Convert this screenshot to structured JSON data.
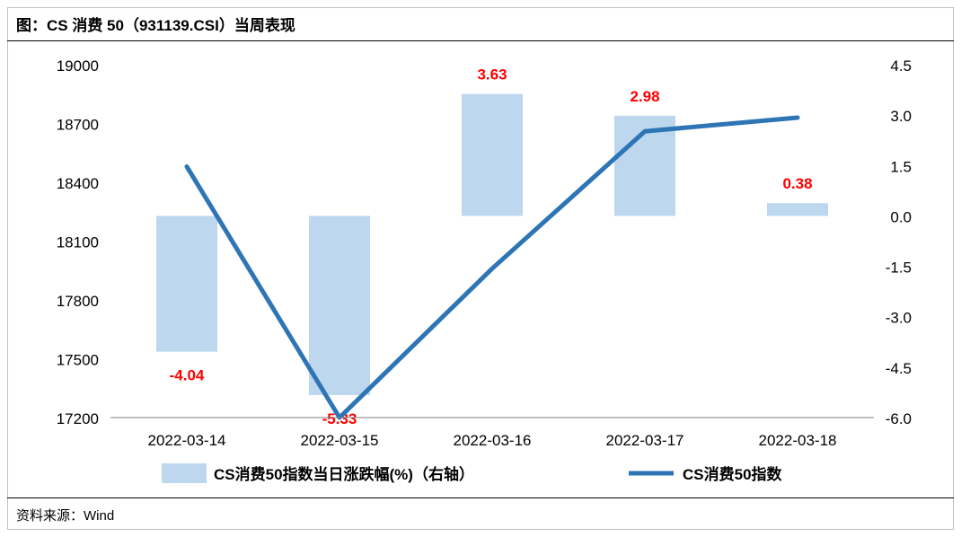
{
  "header": {
    "title": "图：CS 消费 50（931139.CSI）当周表现"
  },
  "footer": {
    "source": "资料来源：Wind"
  },
  "colors": {
    "bar": "#bdd7ee",
    "line": "#2e75b6",
    "label": "#ff0000",
    "axis": "#000000"
  },
  "chart_data": {
    "type": "bar",
    "categories": [
      "2022-03-14",
      "2022-03-15",
      "2022-03-16",
      "2022-03-17",
      "2022-03-18"
    ],
    "series": [
      {
        "name": "CS消费50指数当日涨跌幅(%)（右轴）",
        "type": "bar",
        "axis": "right",
        "values": [
          -4.04,
          -5.33,
          3.63,
          2.98,
          0.38
        ],
        "data_labels": [
          "-4.04",
          "-5.33",
          "3.63",
          "2.98",
          "0.38"
        ]
      },
      {
        "name": "CS消费50指数",
        "type": "line",
        "axis": "left",
        "values": [
          18480,
          17200,
          17960,
          18660,
          18730
        ]
      }
    ],
    "y_left": {
      "ylim": [
        17200,
        19000
      ],
      "ticks": [
        "19000",
        "18700",
        "18400",
        "18100",
        "17800",
        "17500",
        "17200"
      ]
    },
    "y_right": {
      "ylim": [
        -6.0,
        4.5
      ],
      "ticks": [
        "4.5",
        "3.0",
        "1.5",
        "0.0",
        "-1.5",
        "-3.0",
        "-4.5",
        "-6.0"
      ]
    },
    "legend": "bottom",
    "grid": false
  }
}
